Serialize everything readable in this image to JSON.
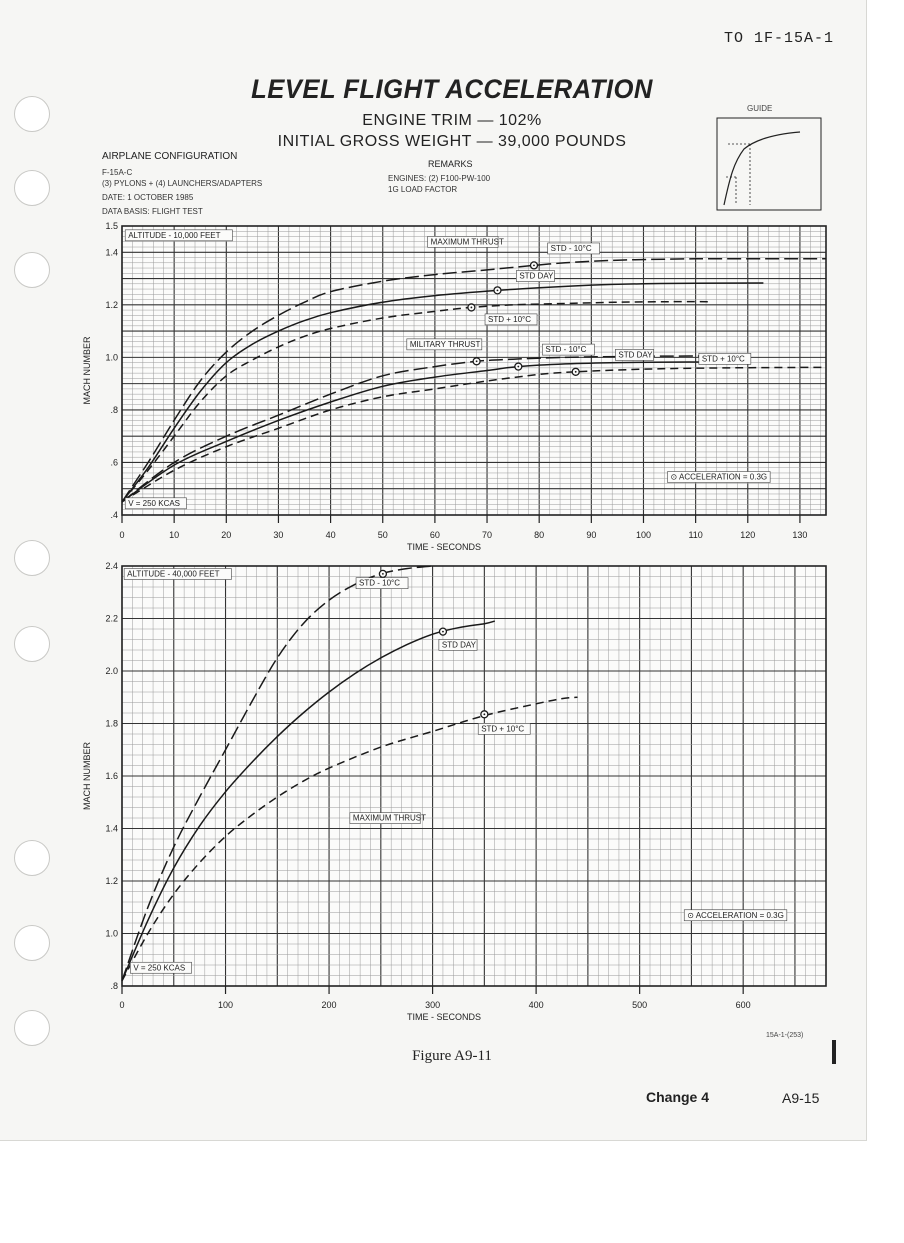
{
  "header": {
    "doc_number": "TO 1F-15A-1",
    "title": "LEVEL FLIGHT ACCELERATION",
    "subtitle_1": "ENGINE TRIM — 102%",
    "subtitle_2": "INITIAL GROSS WEIGHT — 39,000 POUNDS"
  },
  "configuration": {
    "heading": "AIRPLANE CONFIGURATION",
    "lines": [
      "F-15A-C",
      "(3) PYLONS + (4) LAUNCHERS/ADAPTERS",
      "DATE:  1 OCTOBER 1985",
      "DATA BASIS:  FLIGHT TEST"
    ]
  },
  "remarks": {
    "heading": "REMARKS",
    "lines": [
      "ENGINES:  (2) F100-PW-100",
      "1G LOAD FACTOR"
    ]
  },
  "guide": {
    "label": "GUIDE"
  },
  "footer": {
    "figure": "Figure A9-11",
    "change": "Change 4",
    "page": "A9-15",
    "code": "15A-1-(253)"
  },
  "colors": {
    "ink": "#222222",
    "grid": "#555555",
    "paper": "#f6f6f4"
  },
  "chart_data": [
    {
      "type": "line",
      "xlabel": "TIME - SECONDS",
      "ylabel": "MACH NUMBER",
      "xlim": [
        0,
        135
      ],
      "ylim": [
        0.4,
        1.5
      ],
      "xticks": [
        0,
        10,
        20,
        30,
        40,
        50,
        60,
        70,
        80,
        90,
        100,
        110,
        120,
        130
      ],
      "yticks": [
        {
          "v": 0.4,
          "t": ".4"
        },
        {
          "v": 0.6,
          "t": ".6"
        },
        {
          "v": 0.8,
          "t": ".8"
        },
        {
          "v": 1.0,
          "t": "1.0"
        },
        {
          "v": 1.2,
          "t": "1.2"
        },
        {
          "v": 1.4,
          "t": "1.4"
        },
        {
          "v": 1.5,
          "t": "1.5"
        }
      ],
      "grid": true,
      "annotations": [
        {
          "text": "ALTITUDE - 10,000 FEET",
          "x": 1,
          "y": 1.455
        },
        {
          "text": "MAXIMUM THRUST",
          "x": 59,
          "y": 1.43
        },
        {
          "text": "STD - 10°C",
          "x": 82,
          "y": 1.405
        },
        {
          "text": "STD DAY",
          "x": 76,
          "y": 1.3
        },
        {
          "text": "STD + 10°C",
          "x": 70,
          "y": 1.135
        },
        {
          "text": "MILITARY THRUST",
          "x": 55,
          "y": 1.04
        },
        {
          "text": "STD - 10°C",
          "x": 81,
          "y": 1.02
        },
        {
          "text": "STD DAY",
          "x": 95,
          "y": 1.0
        },
        {
          "text": "STD + 10°C",
          "x": 111,
          "y": 0.985
        },
        {
          "text": "⊙ ACCELERATION = 0.3G",
          "x": 105,
          "y": 0.535
        },
        {
          "text": "V = 250 KCAS",
          "x": 1,
          "y": 0.435
        }
      ],
      "series": [
        {
          "name": "STD - 10°C",
          "group": "MAXIMUM THRUST",
          "dash": "long",
          "x": [
            0,
            5,
            10,
            15,
            20,
            25,
            30,
            35,
            40,
            50,
            60,
            70,
            79,
            85,
            95,
            110,
            125,
            135
          ],
          "y": [
            0.45,
            0.6,
            0.76,
            0.91,
            1.02,
            1.1,
            1.16,
            1.21,
            1.25,
            1.29,
            1.315,
            1.333,
            1.35,
            1.36,
            1.37,
            1.375,
            1.375,
            1.375
          ],
          "marker": {
            "x": 79,
            "y": 1.35
          }
        },
        {
          "name": "STD DAY",
          "group": "MAXIMUM THRUST",
          "dash": "solid",
          "x": [
            0,
            5,
            10,
            15,
            20,
            25,
            30,
            35,
            40,
            50,
            60,
            72,
            80,
            90,
            100,
            110,
            123
          ],
          "y": [
            0.45,
            0.58,
            0.73,
            0.87,
            0.98,
            1.05,
            1.1,
            1.14,
            1.17,
            1.21,
            1.235,
            1.255,
            1.265,
            1.275,
            1.28,
            1.282,
            1.283
          ],
          "marker": {
            "x": 72,
            "y": 1.255
          }
        },
        {
          "name": "STD + 10°C",
          "group": "MAXIMUM THRUST",
          "dash": "medium",
          "x": [
            0,
            5,
            10,
            15,
            20,
            25,
            30,
            35,
            40,
            50,
            60,
            67,
            75,
            85,
            95,
            105,
            113
          ],
          "y": [
            0.45,
            0.57,
            0.7,
            0.83,
            0.93,
            0.99,
            1.04,
            1.08,
            1.11,
            1.15,
            1.175,
            1.19,
            1.2,
            1.205,
            1.21,
            1.212,
            1.212
          ],
          "marker": {
            "x": 67,
            "y": 1.19
          }
        },
        {
          "name": "STD - 10°C",
          "group": "MILITARY THRUST",
          "dash": "long",
          "x": [
            0,
            10,
            20,
            30,
            40,
            50,
            60,
            68,
            75,
            85,
            95,
            105,
            115
          ],
          "y": [
            0.45,
            0.6,
            0.7,
            0.78,
            0.86,
            0.93,
            0.965,
            0.985,
            0.993,
            1.0,
            1.003,
            1.005,
            1.005
          ],
          "marker": {
            "x": 68,
            "y": 0.985
          }
        },
        {
          "name": "STD DAY",
          "group": "MILITARY THRUST",
          "dash": "solid",
          "x": [
            0,
            10,
            20,
            30,
            40,
            50,
            60,
            70,
            76,
            85,
            95,
            105,
            115
          ],
          "y": [
            0.45,
            0.59,
            0.68,
            0.76,
            0.83,
            0.89,
            0.925,
            0.95,
            0.965,
            0.975,
            0.98,
            0.982,
            0.982
          ],
          "marker": {
            "x": 76,
            "y": 0.965
          }
        },
        {
          "name": "STD + 10°C",
          "group": "MILITARY THRUST",
          "dash": "medium",
          "x": [
            0,
            10,
            20,
            30,
            40,
            50,
            60,
            70,
            80,
            87,
            100,
            115,
            135
          ],
          "y": [
            0.45,
            0.57,
            0.66,
            0.73,
            0.8,
            0.85,
            0.88,
            0.91,
            0.935,
            0.945,
            0.955,
            0.96,
            0.962
          ],
          "marker": {
            "x": 87,
            "y": 0.945
          }
        }
      ]
    },
    {
      "type": "line",
      "xlabel": "TIME - SECONDS",
      "ylabel": "MACH NUMBER",
      "xlim": [
        0,
        680
      ],
      "ylim": [
        0.8,
        2.4
      ],
      "xticks": [
        0,
        100,
        200,
        300,
        400,
        500,
        600
      ],
      "yticks": [
        {
          "v": 0.8,
          "t": ".8"
        },
        {
          "v": 1.0,
          "t": "1.0"
        },
        {
          "v": 1.2,
          "t": "1.2"
        },
        {
          "v": 1.4,
          "t": "1.4"
        },
        {
          "v": 1.6,
          "t": "1.6"
        },
        {
          "v": 1.8,
          "t": "1.8"
        },
        {
          "v": 2.0,
          "t": "2.0"
        },
        {
          "v": 2.2,
          "t": "2.2"
        },
        {
          "v": 2.4,
          "t": "2.4"
        }
      ],
      "grid": true,
      "annotations": [
        {
          "text": "ALTITUDE - 40,000 FEET",
          "x": 4,
          "y": 2.36
        },
        {
          "text": "STD - 10°C",
          "x": 228,
          "y": 2.325
        },
        {
          "text": "STD DAY",
          "x": 308,
          "y": 2.09
        },
        {
          "text": "STD + 10°C",
          "x": 346,
          "y": 1.77
        },
        {
          "text": "MAXIMUM THRUST",
          "x": 222,
          "y": 1.43
        },
        {
          "text": "⊙ ACCELERATION = 0.3G",
          "x": 545,
          "y": 1.06
        },
        {
          "text": "V = 250 KCAS",
          "x": 10,
          "y": 0.86
        }
      ],
      "series": [
        {
          "name": "STD - 10°C",
          "group": "MAXIMUM THRUST",
          "dash": "long",
          "x": [
            0,
            25,
            50,
            75,
            100,
            125,
            150,
            175,
            200,
            225,
            250,
            275,
            300
          ],
          "y": [
            0.82,
            1.1,
            1.33,
            1.52,
            1.7,
            1.88,
            2.05,
            2.18,
            2.27,
            2.33,
            2.37,
            2.39,
            2.4
          ],
          "marker": {
            "x": 252,
            "y": 2.37
          }
        },
        {
          "name": "STD DAY",
          "group": "MAXIMUM THRUST",
          "dash": "solid",
          "x": [
            0,
            25,
            50,
            75,
            100,
            125,
            150,
            175,
            200,
            225,
            250,
            275,
            300,
            325,
            350,
            360
          ],
          "y": [
            0.82,
            1.05,
            1.25,
            1.41,
            1.54,
            1.65,
            1.75,
            1.84,
            1.92,
            1.99,
            2.05,
            2.1,
            2.14,
            2.165,
            2.18,
            2.19
          ],
          "marker": {
            "x": 310,
            "y": 2.15
          }
        },
        {
          "name": "STD + 10°C",
          "group": "MAXIMUM THRUST",
          "dash": "medium",
          "x": [
            0,
            25,
            50,
            75,
            100,
            125,
            150,
            175,
            200,
            250,
            300,
            350,
            400,
            425,
            440
          ],
          "y": [
            0.82,
            1.0,
            1.15,
            1.27,
            1.37,
            1.45,
            1.52,
            1.58,
            1.63,
            1.71,
            1.77,
            1.83,
            1.875,
            1.895,
            1.9
          ],
          "marker": {
            "x": 350,
            "y": 1.835
          }
        }
      ]
    }
  ]
}
